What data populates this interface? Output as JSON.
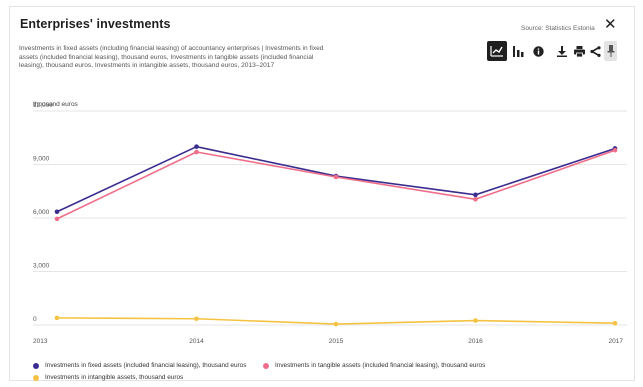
{
  "header": {
    "title": "Enterprises' investments",
    "source": "Source: Statistics Estonia",
    "close_label": "✕"
  },
  "description": "Investments in fixed assets (including financial leasing) of accountancy enterprises | Investments in fixed assets (included financial leasing), thousand euros, Investments in tangible assets (included financial leasing), thousand euros, Investments in intangible assets, thousand euros, 2013–2017",
  "toolbar": {
    "icons": [
      "line-chart-icon",
      "bar-chart-icon",
      "info-icon",
      "download-icon",
      "print-icon",
      "share-icon",
      "pin-icon"
    ],
    "active": "line-chart-icon"
  },
  "colors": {
    "fixed": "#3a2d8f",
    "tangible": "#f06e8a",
    "intangible": "#f5c343",
    "grid": "#e6e6e6"
  },
  "chart_data": {
    "type": "line",
    "unit_label": "thousand euros",
    "x": [
      "2013",
      "2014",
      "2015",
      "2016",
      "2017"
    ],
    "ylim": [
      0,
      12000
    ],
    "yticks": [
      0,
      3000,
      6000,
      9000,
      12000
    ],
    "ytick_labels": [
      "0",
      "3,000",
      "6,000",
      "9,000",
      "12,000"
    ],
    "grid": true,
    "legend_position": "bottom",
    "series": [
      {
        "name": "Investments in fixed assets (included financial leasing), thousand euros",
        "color": "#3a2d8f",
        "values": [
          6350,
          10000,
          8350,
          7300,
          9900
        ]
      },
      {
        "name": "Investments in tangible assets (included financial leasing), thousand euros",
        "color": "#f06e8a",
        "values": [
          5950,
          9700,
          8300,
          7050,
          9800
        ]
      },
      {
        "name": "Investments in intangible assets, thousand euros",
        "color": "#f5c343",
        "values": [
          400,
          350,
          50,
          250,
          100
        ]
      }
    ]
  }
}
